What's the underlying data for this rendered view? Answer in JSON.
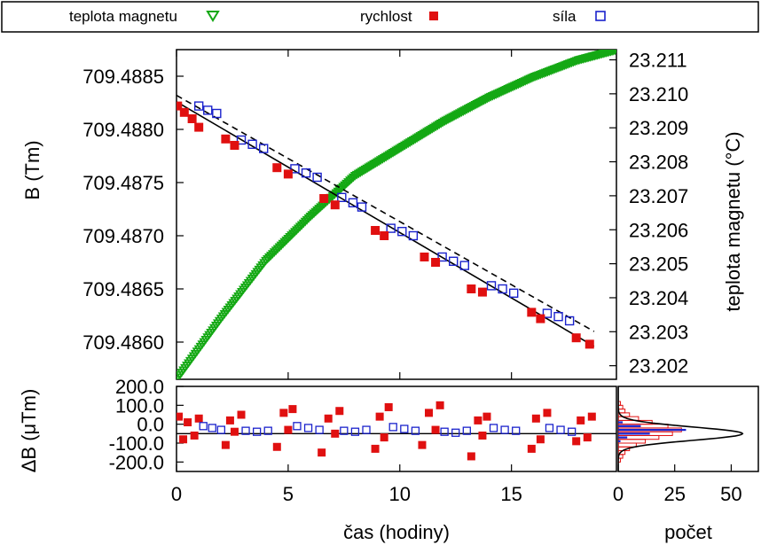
{
  "legend": {
    "items": [
      {
        "label": "teplota magnetu",
        "color": "#14a814",
        "marker": "triangle-down-open"
      },
      {
        "label": "rychlost",
        "color": "#e01010",
        "marker": "square-filled"
      },
      {
        "label": "síla",
        "color": "#1a22cc",
        "marker": "square-open"
      }
    ]
  },
  "chart_data": [
    {
      "id": "main",
      "type": "scatter",
      "xlabel": "",
      "ylabel_left": "B (Tm)",
      "ylabel_right": "teplota magnetu (°C)",
      "xlim": [
        0,
        19.7
      ],
      "ylim_left": [
        709.48565,
        709.48875
      ],
      "ylim_right": [
        23.2016,
        23.2113
      ],
      "yticks_left": [
        "709.4860",
        "709.4865",
        "709.4870",
        "709.4875",
        "709.4880",
        "709.4885"
      ],
      "yticks_right": [
        "23.202",
        "23.203",
        "23.204",
        "23.205",
        "23.206",
        "23.207",
        "23.208",
        "23.209",
        "23.210",
        "23.211"
      ],
      "grid": false,
      "series": [
        {
          "name": "rychlost",
          "axis": "left",
          "color": "#e01010",
          "x": [
            0.05,
            0.35,
            0.7,
            1.0,
            2.2,
            2.6,
            4.5,
            5.0,
            6.6,
            7.1,
            8.9,
            9.3,
            11.1,
            11.6,
            13.2,
            13.7,
            15.9,
            16.3,
            17.9,
            18.5
          ],
          "y": [
            709.48822,
            709.48816,
            709.4881,
            709.48802,
            709.48791,
            709.48785,
            709.48764,
            709.48758,
            709.48735,
            709.48729,
            709.48705,
            709.487,
            709.4868,
            709.48675,
            709.4865,
            709.48647,
            709.48628,
            709.48622,
            709.48604,
            709.48598
          ]
        },
        {
          "name": "síla",
          "axis": "left",
          "color": "#1a22cc",
          "x": [
            1.0,
            1.4,
            1.8,
            2.9,
            3.4,
            3.9,
            5.3,
            5.8,
            6.3,
            7.4,
            7.9,
            8.3,
            9.6,
            10.1,
            10.6,
            11.9,
            12.4,
            12.9,
            14.1,
            14.6,
            15.1,
            16.6,
            17.1,
            17.6
          ],
          "y": [
            709.48822,
            709.48818,
            709.48815,
            709.4879,
            709.48786,
            709.48782,
            709.48763,
            709.48759,
            709.48755,
            709.48736,
            709.48731,
            709.48727,
            709.48707,
            709.48704,
            709.487,
            709.4868,
            709.48676,
            709.48672,
            709.48653,
            709.4865,
            709.48646,
            709.48627,
            709.48624,
            709.4862
          ]
        },
        {
          "name": "teplota magnetu",
          "axis": "right",
          "color": "#14a814",
          "x": [
            0,
            2,
            4,
            6,
            8,
            10,
            12,
            14,
            16,
            18,
            19.7
          ],
          "y": [
            23.2016,
            23.2034,
            23.2051,
            23.2064,
            23.2076,
            23.2084,
            23.2092,
            23.2099,
            23.2105,
            23.211,
            23.2113
          ]
        }
      ],
      "fits": [
        {
          "label": "",
          "style": "solid",
          "x": [
            0,
            18.7
          ],
          "y": [
            709.48826,
            709.48596
          ]
        },
        {
          "label": "",
          "style": "dashed",
          "x": [
            0,
            18.7
          ],
          "y": [
            709.48832,
            709.4861
          ]
        }
      ]
    },
    {
      "id": "residual",
      "type": "scatter",
      "xlabel": "čas (hodiny)",
      "ylabel": "ΔB (μTm)",
      "xlim": [
        0,
        19.7
      ],
      "ylim": [
        -250,
        200
      ],
      "xticks": [
        "0",
        "5",
        "10",
        "15"
      ],
      "yticks": [
        "-200.0",
        "-100.0",
        "0.0",
        "100.0",
        "200.0"
      ],
      "series": [
        {
          "name": "rychlost",
          "color": "#e01010",
          "x": [
            0.1,
            0.3,
            0.5,
            0.8,
            1.0,
            2.2,
            2.4,
            2.6,
            2.9,
            4.5,
            4.8,
            5.0,
            5.2,
            6.5,
            6.8,
            7.1,
            7.3,
            8.9,
            9.1,
            9.3,
            9.5,
            11.0,
            11.3,
            11.6,
            11.8,
            13.2,
            13.5,
            13.7,
            13.9,
            15.9,
            16.1,
            16.3,
            16.6,
            17.9,
            18.1,
            18.4,
            18.6
          ],
          "y": [
            40,
            -80,
            10,
            -60,
            30,
            -110,
            20,
            -40,
            50,
            -120,
            60,
            -30,
            80,
            -150,
            30,
            -50,
            70,
            -130,
            40,
            -70,
            90,
            -110,
            60,
            -30,
            100,
            -170,
            20,
            -60,
            40,
            -130,
            30,
            -80,
            60,
            -90,
            20,
            -70,
            40
          ]
        },
        {
          "name": "síla",
          "color": "#1a22cc",
          "x": [
            1.2,
            1.6,
            2.0,
            3.1,
            3.6,
            4.1,
            5.4,
            5.9,
            6.4,
            7.5,
            8.0,
            8.5,
            9.7,
            10.2,
            10.7,
            12.0,
            12.5,
            13.0,
            14.2,
            14.7,
            15.2,
            16.7,
            17.2,
            17.7
          ],
          "y": [
            -10,
            -20,
            -30,
            -35,
            -40,
            -35,
            -10,
            -20,
            -30,
            -35,
            -40,
            -30,
            -15,
            -25,
            -35,
            -40,
            -45,
            -35,
            -20,
            -30,
            -35,
            -20,
            -30,
            -40
          ]
        }
      ],
      "zero_line": -50
    },
    {
      "id": "histogram",
      "type": "bar",
      "xlabel": "počet",
      "xlim": [
        0,
        62
      ],
      "xticks": [
        "0",
        "25",
        "50"
      ],
      "ylim": [
        -250,
        200
      ],
      "bins": [
        -200,
        -180,
        -160,
        -140,
        -120,
        -100,
        -80,
        -60,
        -40,
        -20,
        0,
        20,
        40,
        60,
        80,
        100
      ],
      "counts_rychlost": [
        1,
        2,
        3,
        5,
        8,
        12,
        18,
        24,
        28,
        22,
        15,
        9,
        5,
        3,
        2,
        1
      ],
      "counts_sila": [
        0,
        0,
        0,
        0,
        0,
        1,
        4,
        14,
        30,
        10,
        2,
        0,
        0,
        0,
        0,
        0
      ],
      "gauss_mean": -50,
      "gauss_sigma": 35,
      "gauss_peak": 55
    }
  ]
}
